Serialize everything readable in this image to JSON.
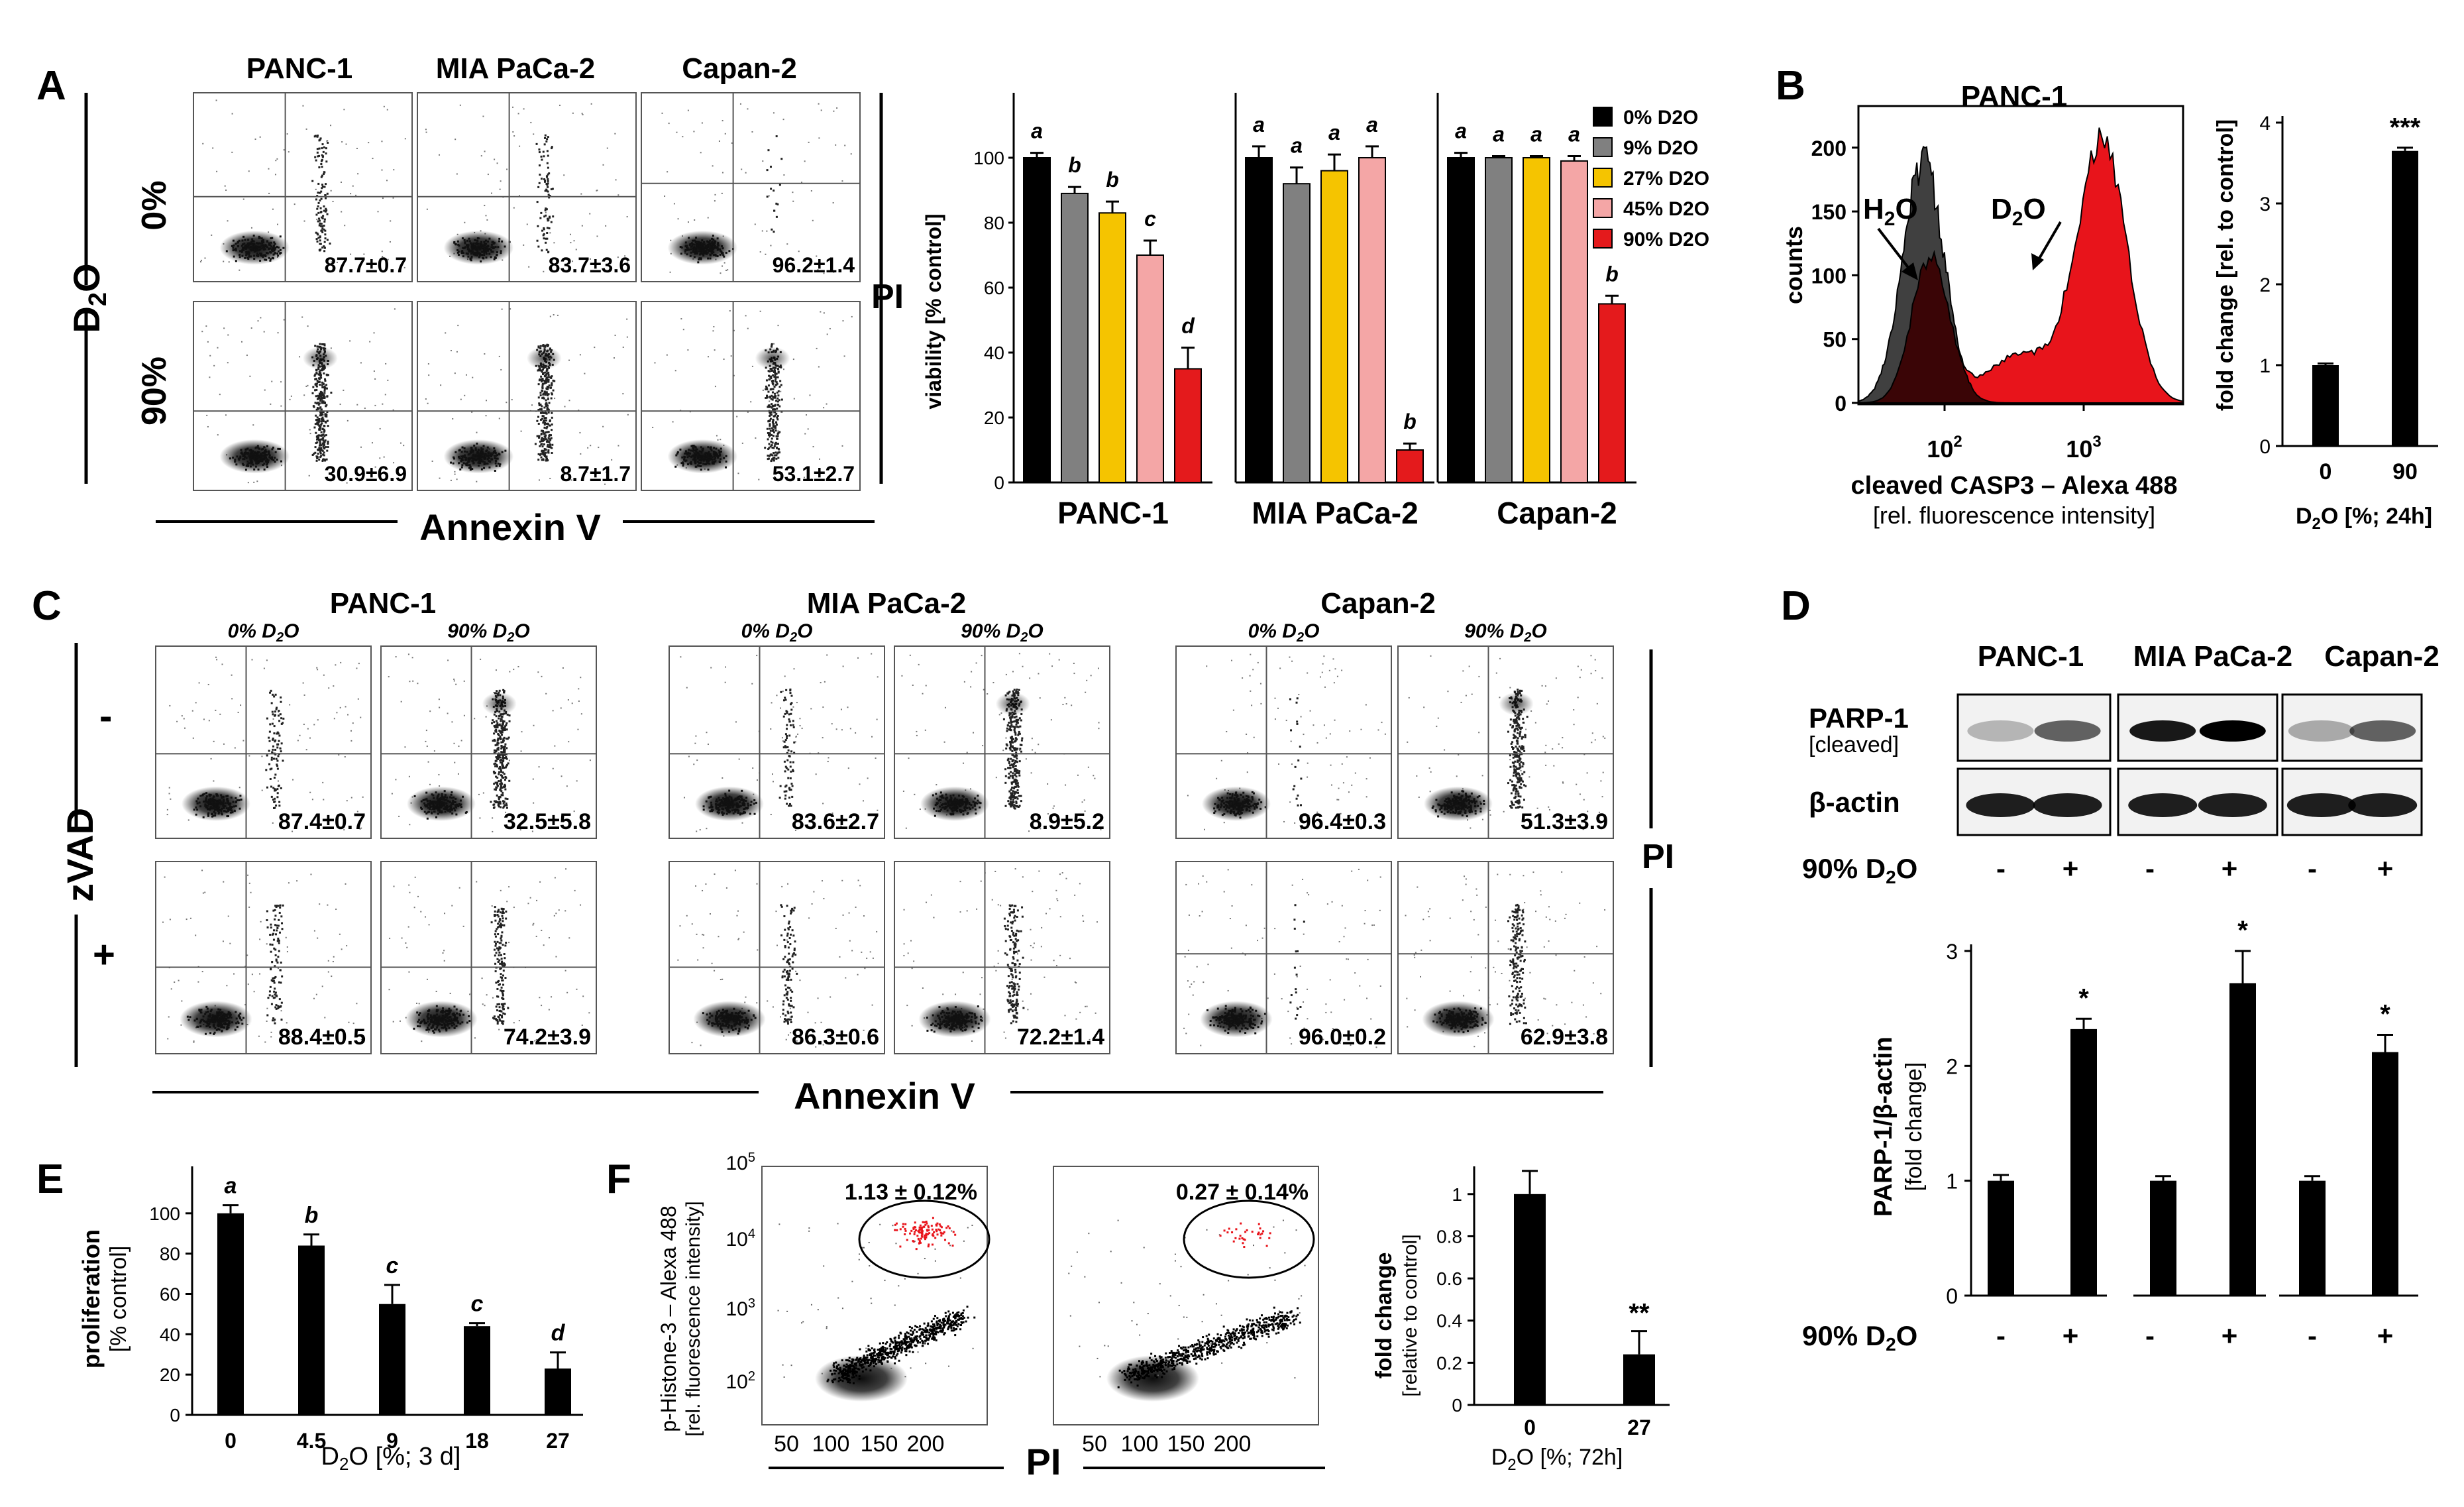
{
  "panels": {
    "A": "A",
    "B": "B",
    "C": "C",
    "D": "D",
    "E": "E",
    "F": "F"
  },
  "cell_lines": [
    "PANC-1",
    "MIA PaCa-2",
    "Capan-2"
  ],
  "panel_A": {
    "row_labels": [
      "0%",
      "90%"
    ],
    "d2o_label": "D2O",
    "x_axis": "Annexin V",
    "y_axis": "PI",
    "flow_values": {
      "0": [
        "87.7±0.7",
        "83.7±3.6",
        "96.2±1.4"
      ],
      "90": [
        "30.9±6.9",
        "8.7±1.7",
        "53.1±2.7"
      ]
    }
  },
  "panel_A_bar": {
    "ylabel": "viability [% control]",
    "yticks": [
      "0",
      "20",
      "40",
      "60",
      "80",
      "100"
    ],
    "legend": [
      "0% D2O",
      "9% D2O",
      "27% D2O",
      "45% D2O",
      "90% D2O"
    ],
    "colors": [
      "#000000",
      "#808080",
      "#f5c400",
      "#f4a6a6",
      "#e41a1c"
    ]
  },
  "panel_B": {
    "title": "PANC-1",
    "ylabel": "counts",
    "xlabel": "cleaved CASP3 – Alexa 488",
    "xlabel2": "[rel. fluorescence intensity]",
    "yticks": [
      "0",
      "50",
      "100",
      "150",
      "200"
    ],
    "xticks": [
      "10",
      "10"
    ],
    "xtick_exp": [
      "2",
      "3"
    ],
    "h2o_label": "H2O",
    "d2o_label": "D2O",
    "bar_ylabel": "fold change [rel. to control]",
    "bar_yticks": [
      "0",
      "1",
      "2",
      "3",
      "4"
    ],
    "bar_xticks": [
      "0",
      "90"
    ],
    "bar_xlabel": "D2O [%; 24h]",
    "sig": "***"
  },
  "panel_C": {
    "conditions": [
      "0% D2O",
      "90% D2O"
    ],
    "zvad_label": "zVAD",
    "minus": "-",
    "plus": "+",
    "x_axis": "Annexin V",
    "y_axis": "PI",
    "values_minus": [
      "87.4±0.7",
      "32.5±5.8",
      "83.6±2.7",
      "8.9±5.2",
      "96.4±0.3",
      "51.3±3.9"
    ],
    "values_plus": [
      "88.4±0.5",
      "74.2±3.9",
      "86.3±0.6",
      "72.2±1.4",
      "96.0±0.2",
      "62.9±3.8"
    ]
  },
  "panel_D": {
    "parp_label": "PARP-1",
    "parp_sub": "[cleaved]",
    "actin_label": "β-actin",
    "treat_label": "90% D2O",
    "signs": [
      "-",
      "+",
      "-",
      "+",
      "-",
      "+"
    ],
    "ylabel": "PARP-1/β-actin",
    "ylabel2": "[fold change]",
    "yticks": [
      "0",
      "1",
      "2",
      "3"
    ],
    "sig": "*"
  },
  "panel_E": {
    "ylabel": "proliferation",
    "ylabel2": "[% control]",
    "yticks": [
      "0",
      "20",
      "40",
      "60",
      "80",
      "100"
    ],
    "xlabel": "D2O [%; 3 d]"
  },
  "panel_F": {
    "ylabel": "p-Histone-3 – Alexa 488",
    "ylabel2": "[rel. fluorescence intensity]",
    "gates": [
      "1.13 ± 0.12%",
      "0.27 ± 0.14%"
    ],
    "xticks": [
      "50",
      "100",
      "150",
      "200"
    ],
    "x_axis": "PI",
    "bar_ylabel": "fold change",
    "bar_ylabel2": "[relative to control]",
    "bar_yticks": [
      "0",
      "0.2",
      "0.4",
      "0.6",
      "0.8",
      "1"
    ],
    "bar_xticks": [
      "0",
      "27"
    ],
    "bar_xlabel": "D2O [%; 72h]",
    "sig": "**"
  },
  "chart_data": [
    {
      "type": "bar",
      "id": "A-viability",
      "title": "",
      "ylabel": "viability [% control]",
      "ylim": [
        0,
        120
      ],
      "groups": [
        "PANC-1",
        "MIA PaCa-2",
        "Capan-2"
      ],
      "series": [
        {
          "name": "0% D2O",
          "values": [
            100,
            100,
            100
          ],
          "errors": [
            1.5,
            3.5,
            1.5
          ],
          "letters": [
            "a",
            "a",
            "a"
          ]
        },
        {
          "name": "9% D2O",
          "values": [
            89,
            92,
            100
          ],
          "errors": [
            2,
            5,
            0.5
          ],
          "letters": [
            "b",
            "a",
            "a"
          ]
        },
        {
          "name": "27% D2O",
          "values": [
            83,
            96,
            100
          ],
          "errors": [
            3.5,
            5,
            0.5
          ],
          "letters": [
            "b",
            "a",
            "a"
          ]
        },
        {
          "name": "45% D2O",
          "values": [
            70,
            100,
            99
          ],
          "errors": [
            4.5,
            3.5,
            1.5
          ],
          "letters": [
            "c",
            "a",
            "a"
          ]
        },
        {
          "name": "90% D2O",
          "values": [
            35,
            10,
            55
          ],
          "errors": [
            6.5,
            2,
            2.5
          ],
          "letters": [
            "d",
            "b",
            "b"
          ]
        }
      ]
    },
    {
      "type": "bar",
      "id": "B-fold",
      "ylabel": "fold change [rel. to control]",
      "categories": [
        "0",
        "90"
      ],
      "values": [
        1.0,
        3.65
      ],
      "errors": [
        0.02,
        0.04
      ],
      "ylim": [
        0,
        4
      ]
    },
    {
      "type": "bar",
      "id": "D-parp",
      "ylabel": "PARP-1/β-actin [fold change]",
      "groups": [
        "PANC-1",
        "MIA PaCa-2",
        "Capan-2"
      ],
      "values": [
        1.0,
        2.32,
        1.0,
        2.72,
        1.0,
        2.12
      ],
      "errors": [
        0.05,
        0.09,
        0.04,
        0.28,
        0.04,
        0.15
      ],
      "sig": [
        false,
        true,
        false,
        true,
        false,
        true
      ],
      "ylim": [
        0,
        3
      ]
    },
    {
      "type": "bar",
      "id": "E-proliferation",
      "ylabel": "proliferation [% control]",
      "xlabel": "D2O [%; 3 d]",
      "categories": [
        "0",
        "4.5",
        "9",
        "18",
        "27"
      ],
      "values": [
        100,
        84,
        55,
        44,
        23
      ],
      "errors": [
        4,
        5.5,
        9.5,
        1.5,
        8
      ],
      "letters": [
        "a",
        "b",
        "c",
        "c",
        "d"
      ],
      "ylim": [
        0,
        120
      ]
    },
    {
      "type": "bar",
      "id": "F-fold",
      "ylabel": "fold change [relative to control]",
      "xlabel": "D2O [%; 72h]",
      "categories": [
        "0",
        "27"
      ],
      "values": [
        1.0,
        0.24
      ],
      "errors": [
        0.11,
        0.11
      ],
      "ylim": [
        0,
        1.1
      ]
    }
  ]
}
